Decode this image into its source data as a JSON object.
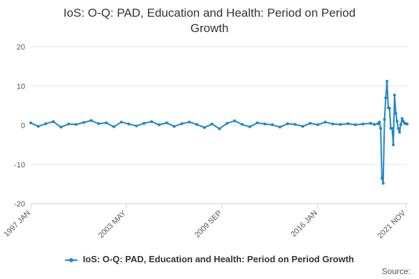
{
  "title_lines": [
    "IoS: O-Q: PAD, Education and Health: Period on Period",
    "Growth"
  ],
  "source_label": "Source:",
  "chart_data": {
    "type": "line",
    "title": "IoS: O-Q: PAD, Education and Health: Period on Period Growth",
    "xlabel": "",
    "ylabel": "",
    "ylim": [
      -20,
      20
    ],
    "y_ticks": [
      20,
      10,
      0,
      -10,
      -20
    ],
    "x_range": [
      "1997 JAN",
      "2021 DEC"
    ],
    "x_tick_labels": [
      "1997 JAN",
      "2003 MAY",
      "2009 SEP",
      "2016 JAN",
      "2021 NOV"
    ],
    "legend": "bottom",
    "grid": true,
    "color": "#1f86c8",
    "series": [
      {
        "name": "IoS: O-Q: PAD, Education and Health: Period on Period Growth",
        "x": [
          "1997 JAN",
          "1997 JUL",
          "1998 JAN",
          "1998 JUL",
          "1999 JAN",
          "1999 JUL",
          "2000 JAN",
          "2000 JUL",
          "2001 JAN",
          "2001 JUL",
          "2002 JAN",
          "2002 JUL",
          "2003 JAN",
          "2003 JUL",
          "2004 JAN",
          "2004 JUL",
          "2005 JAN",
          "2005 JUL",
          "2006 JAN",
          "2006 JUL",
          "2007 JAN",
          "2007 JUL",
          "2008 JAN",
          "2008 JUL",
          "2009 JAN",
          "2009 JUL",
          "2010 JAN",
          "2010 JUL",
          "2011 JAN",
          "2011 JUL",
          "2012 JAN",
          "2012 JUL",
          "2013 JAN",
          "2013 JUL",
          "2014 JAN",
          "2014 JUL",
          "2015 JAN",
          "2015 JUL",
          "2016 JAN",
          "2016 JUL",
          "2017 JAN",
          "2017 JUL",
          "2018 JAN",
          "2018 JUL",
          "2019 JAN",
          "2019 JUL",
          "2019 OCT",
          "2020 JAN",
          "2020 FEB",
          "2020 MAR",
          "2020 APR",
          "2020 MAY",
          "2020 JUN",
          "2020 JUL",
          "2020 AUG",
          "2020 SEP",
          "2020 OCT",
          "2020 NOV",
          "2020 DEC",
          "2021 JAN",
          "2021 FEB",
          "2021 MAR",
          "2021 APR",
          "2021 MAY",
          "2021 JUN",
          "2021 JUL",
          "2021 AUG",
          "2021 SEP",
          "2021 OCT",
          "2021 NOV",
          "2021 DEC"
        ],
        "values": [
          0.6,
          -0.3,
          0.4,
          0.9,
          -0.5,
          0.3,
          0.2,
          0.7,
          1.2,
          0.4,
          0.6,
          -0.4,
          0.8,
          0.3,
          -0.2,
          0.5,
          0.9,
          0.1,
          0.6,
          -0.3,
          0.4,
          0.8,
          0.2,
          -0.6,
          0.3,
          -0.9,
          0.5,
          1.1,
          0.2,
          -0.4,
          0.6,
          0.3,
          0.1,
          -0.5,
          0.4,
          0.2,
          -0.3,
          0.5,
          0.1,
          0.8,
          0.3,
          0.2,
          0.4,
          0.1,
          0.3,
          0.5,
          0.2,
          0.4,
          0.8,
          -0.8,
          -13.5,
          -14.8,
          1.5,
          7.0,
          11.2,
          4.5,
          4.3,
          -0.8,
          -0.8,
          -5.0,
          7.7,
          3.0,
          1.0,
          -0.8,
          -1.8,
          0.2,
          1.7,
          1.0,
          0.5,
          0.4,
          0.3
        ]
      }
    ]
  }
}
